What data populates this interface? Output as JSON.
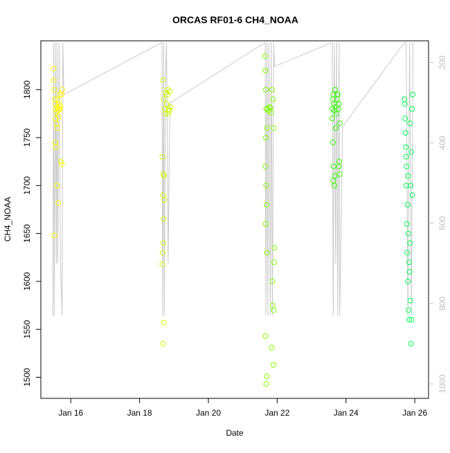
{
  "chart_data": {
    "type": "scatter",
    "title": "ORCAS RF01-6 CH4_NOAA",
    "x_label": "Date",
    "y_label": "CH4_NOAA",
    "xlim": [
      15.13,
      26.4
    ],
    "xticks": [
      {
        "value": 16,
        "label": "Jan 16"
      },
      {
        "value": 18,
        "label": "Jan 18"
      },
      {
        "value": 20,
        "label": "Jan 20"
      },
      {
        "value": 22,
        "label": "Jan 22"
      },
      {
        "value": 24,
        "label": "Jan 24"
      },
      {
        "value": 26,
        "label": "Jan 26"
      }
    ],
    "ylim": [
      1478,
      1851
    ],
    "yticks": [
      1500,
      1550,
      1600,
      1650,
      1700,
      1750,
      1800
    ],
    "y2lim": [
      1036,
      146
    ],
    "y2ticks": [
      200,
      400,
      600,
      800,
      1000
    ],
    "y2_color": "#bebebe",
    "series": [
      {
        "type": "line",
        "axis": "y2",
        "color": "#c8c8c8",
        "x": [
          15.48,
          15.5,
          15.52,
          15.55,
          15.58,
          15.6,
          15.62,
          15.66,
          15.7,
          15.75,
          15.77,
          15.8,
          18.65,
          18.67,
          18.7,
          18.72,
          18.75,
          18.78,
          18.8,
          18.83,
          18.88,
          18.9,
          21.65,
          21.67,
          21.7,
          21.73,
          21.76,
          21.8,
          21.83,
          21.86,
          21.9,
          21.92,
          23.6,
          23.63,
          23.66,
          23.7,
          23.73,
          23.76,
          23.8,
          23.82,
          23.9,
          25.7,
          25.75,
          25.8,
          25.85,
          25.9,
          25.95
        ],
        "values": [
          830,
          150,
          830,
          150,
          700,
          150,
          700,
          150,
          700,
          830,
          150,
          280,
          150,
          830,
          150,
          830,
          260,
          150,
          300,
          700,
          300,
          300,
          150,
          830,
          150,
          830,
          150,
          830,
          150,
          830,
          150,
          210,
          150,
          830,
          150,
          700,
          150,
          830,
          150,
          830,
          360,
          150,
          150,
          830,
          150,
          830,
          150
        ]
      },
      {
        "color": "#ffff00",
        "x": [
          15.5,
          15.52,
          15.54,
          15.55,
          15.56,
          15.58,
          15.6,
          15.62,
          15.63,
          15.65,
          15.66,
          15.68,
          15.7,
          15.72,
          15.74,
          15.75,
          15.55,
          15.57,
          15.6,
          15.64,
          15.58,
          15.53,
          15.61,
          15.69,
          15.73,
          15.5,
          15.56,
          15.65
        ],
        "values": [
          1822,
          1800,
          1790,
          1785,
          1780,
          1776,
          1782,
          1790,
          1778,
          1785,
          1780,
          1795,
          1783,
          1725,
          1722,
          1800,
          1745,
          1740,
          1700,
          1682,
          1765,
          1648,
          1760,
          1780,
          1795,
          1810,
          1770,
          1772
        ]
      },
      {
        "color": "#ccff00",
        "x": [
          18.68,
          18.7,
          18.66,
          18.67,
          18.69,
          18.7,
          18.72,
          18.68,
          18.71,
          18.69,
          18.66,
          18.73,
          18.75,
          18.78,
          18.8,
          18.82,
          18.85,
          18.87,
          18.9,
          18.7,
          18.68,
          18.76,
          18.83,
          18.88
        ],
        "values": [
          1535,
          1557,
          1618,
          1630,
          1640,
          1665,
          1685,
          1690,
          1710,
          1712,
          1730,
          1780,
          1775,
          1785,
          1795,
          1800,
          1780,
          1778,
          1782,
          1790,
          1810,
          1797,
          1775,
          1798
        ]
      },
      {
        "color": "#80ff00",
        "x": [
          21.65,
          21.66,
          21.67,
          21.68,
          21.7,
          21.66,
          21.68,
          21.67,
          21.7,
          21.72,
          21.75,
          21.78,
          21.8,
          21.82,
          21.85,
          21.88,
          21.9,
          21.92,
          21.86,
          21.87,
          21.9,
          21.66,
          21.7,
          21.68,
          21.84,
          21.89,
          21.91,
          21.67,
          21.69
        ],
        "values": [
          1835,
          1820,
          1800,
          1780,
          1760,
          1720,
          1700,
          1660,
          1630,
          1780,
          1778,
          1782,
          1781,
          1776,
          1800,
          1790,
          1760,
          1635,
          1600,
          1575,
          1570,
          1543,
          1501,
          1493,
          1531,
          1513,
          1620,
          1750,
          1680
        ]
      },
      {
        "color": "#33ff00",
        "x": [
          23.6,
          23.62,
          23.63,
          23.65,
          23.66,
          23.68,
          23.7,
          23.72,
          23.74,
          23.76,
          23.78,
          23.8,
          23.82,
          23.62,
          23.64,
          23.63,
          23.66,
          23.8,
          23.82,
          23.79,
          23.6,
          23.7,
          23.75,
          23.68
        ],
        "values": [
          1780,
          1790,
          1795,
          1785,
          1778,
          1800,
          1782,
          1775,
          1790,
          1795,
          1780,
          1785,
          1765,
          1745,
          1720,
          1705,
          1700,
          1725,
          1712,
          1720,
          1770,
          1760,
          1795,
          1710
        ]
      },
      {
        "color": "#00ff55",
        "x": [
          25.7,
          25.72,
          25.74,
          25.75,
          25.77,
          25.78,
          25.8,
          25.82,
          25.84,
          25.86,
          25.88,
          25.9,
          25.92,
          25.94,
          25.73,
          25.76,
          25.79,
          25.81,
          25.83,
          25.85,
          25.87,
          25.89,
          25.91,
          25.93,
          25.75,
          25.8,
          25.86,
          25.71
        ],
        "values": [
          1790,
          1770,
          1740,
          1700,
          1660,
          1630,
          1600,
          1570,
          1560,
          1640,
          1700,
          1735,
          1780,
          1795,
          1755,
          1720,
          1680,
          1650,
          1620,
          1610,
          1580,
          1535,
          1560,
          1690,
          1730,
          1710,
          1765,
          1785
        ]
      }
    ]
  }
}
